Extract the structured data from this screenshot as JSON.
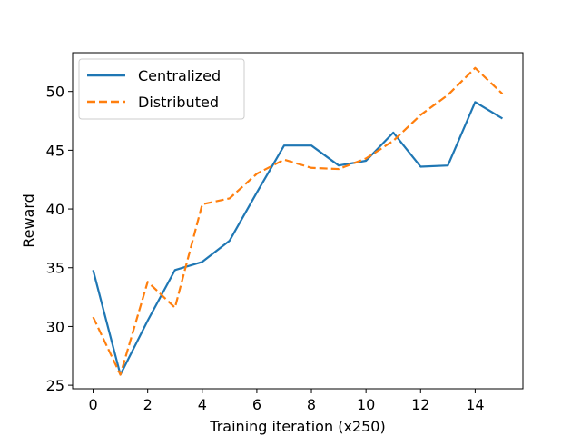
{
  "chart_data": {
    "type": "line",
    "title": "",
    "xlabel": "Training iteration (x250)",
    "ylabel": "Reward",
    "x": [
      0,
      1,
      2,
      3,
      4,
      5,
      6,
      7,
      8,
      9,
      10,
      11,
      12,
      13,
      14,
      15
    ],
    "xlim": [
      -0.75,
      15.75
    ],
    "ylim": [
      24.7,
      53.3
    ],
    "xticks": [
      0,
      2,
      4,
      6,
      8,
      10,
      12,
      14
    ],
    "yticks": [
      25,
      30,
      35,
      40,
      45,
      50
    ],
    "grid": false,
    "legend_position": "top-left",
    "series": [
      {
        "name": "Centralized",
        "color": "#1f77b4",
        "style": "solid",
        "values": [
          34.8,
          25.9,
          30.5,
          34.8,
          35.5,
          37.3,
          41.4,
          45.4,
          45.4,
          43.7,
          44.1,
          46.5,
          43.6,
          43.7,
          49.1,
          47.7
        ]
      },
      {
        "name": "Distributed",
        "color": "#ff7f0e",
        "style": "dashed",
        "values": [
          30.8,
          25.9,
          33.8,
          31.6,
          40.4,
          40.9,
          43.0,
          44.2,
          43.5,
          43.4,
          44.3,
          45.8,
          48.0,
          49.7,
          52.0,
          49.8
        ]
      }
    ]
  }
}
